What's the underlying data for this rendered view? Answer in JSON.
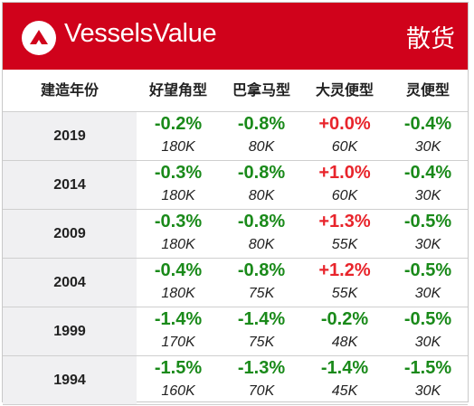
{
  "brand": {
    "name": "VesselsValue",
    "section": "散货"
  },
  "colors": {
    "banner": "#d0021b",
    "negative": "#1a8a1a",
    "positive": "#e8242b"
  },
  "table": {
    "headers": [
      "建造年份",
      "好望角型",
      "巴拿马型",
      "大灵便型",
      "灵便型"
    ],
    "rows": [
      {
        "year": "2019",
        "cells": [
          {
            "chg": "-0.2%",
            "val": "180K"
          },
          {
            "chg": "-0.8%",
            "val": "80K"
          },
          {
            "chg": "+0.0%",
            "val": "60K"
          },
          {
            "chg": "-0.4%",
            "val": "30K"
          }
        ]
      },
      {
        "year": "2014",
        "cells": [
          {
            "chg": "-0.3%",
            "val": "180K"
          },
          {
            "chg": "-0.8%",
            "val": "80K"
          },
          {
            "chg": "+1.0%",
            "val": "60K"
          },
          {
            "chg": "-0.4%",
            "val": "30K"
          }
        ]
      },
      {
        "year": "2009",
        "cells": [
          {
            "chg": "-0.3%",
            "val": "180K"
          },
          {
            "chg": "-0.8%",
            "val": "80K"
          },
          {
            "chg": "+1.3%",
            "val": "55K"
          },
          {
            "chg": "-0.5%",
            "val": "30K"
          }
        ]
      },
      {
        "year": "2004",
        "cells": [
          {
            "chg": "-0.4%",
            "val": "180K"
          },
          {
            "chg": "-0.8%",
            "val": "75K"
          },
          {
            "chg": "+1.2%",
            "val": "55K"
          },
          {
            "chg": "-0.5%",
            "val": "30K"
          }
        ]
      },
      {
        "year": "1999",
        "cells": [
          {
            "chg": "-1.4%",
            "val": "170K"
          },
          {
            "chg": "-1.4%",
            "val": "75K"
          },
          {
            "chg": "-0.2%",
            "val": "48K"
          },
          {
            "chg": "-0.5%",
            "val": "30K"
          }
        ]
      },
      {
        "year": "1994",
        "cells": [
          {
            "chg": "-1.5%",
            "val": "160K"
          },
          {
            "chg": "-1.3%",
            "val": "70K"
          },
          {
            "chg": "-1.4%",
            "val": "45K"
          },
          {
            "chg": "-1.5%",
            "val": "30K"
          }
        ]
      }
    ]
  }
}
